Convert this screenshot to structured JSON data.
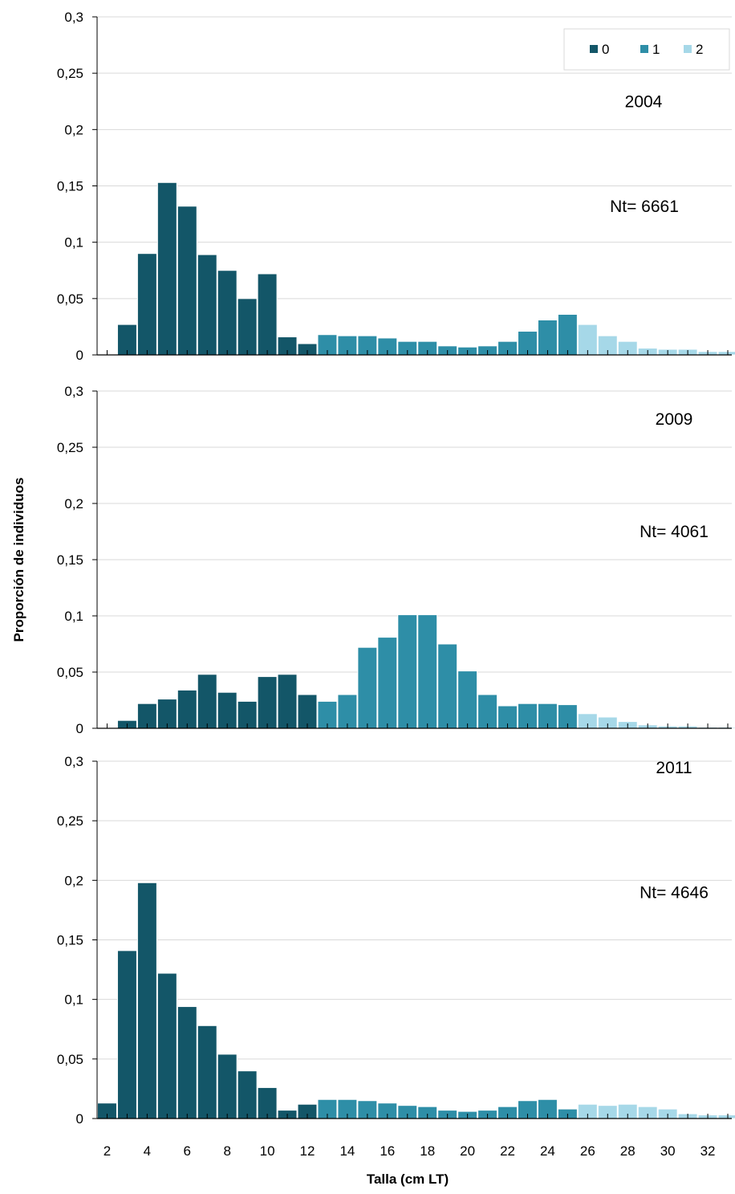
{
  "chart_data": {
    "type": "bar",
    "ylabel": "Proporción de individuos",
    "xlabel": "Talla (cm LT)",
    "x_ticks": [
      "2",
      "4",
      "6",
      "8",
      "10",
      "12",
      "14",
      "16",
      "18",
      "20",
      "22",
      "24",
      "26",
      "28",
      "30",
      "32"
    ],
    "y_ticks": [
      "0",
      "0,05",
      "0,1",
      "0,15",
      "0,2",
      "0,25",
      "0,3"
    ],
    "ylim": [
      0,
      0.3
    ],
    "legend": {
      "placement": "top-right",
      "entries": [
        {
          "label": "0",
          "color": "#135668"
        },
        {
          "label": "1",
          "color": "#2e8ea7"
        },
        {
          "label": "2",
          "color": "#a6d8e8"
        }
      ]
    },
    "panels": [
      {
        "year_label": "2004",
        "nt_label": "Nt= 6661",
        "x": [
          3,
          4,
          5,
          6,
          7,
          8,
          9,
          10,
          11,
          12,
          13,
          14,
          15,
          16,
          17,
          18,
          19,
          20,
          21,
          22,
          23,
          24,
          25,
          26,
          27,
          28,
          29,
          30,
          31,
          32,
          33
        ],
        "values": [
          0.027,
          0.09,
          0.153,
          0.132,
          0.089,
          0.075,
          0.05,
          0.072,
          0.016,
          0.01,
          0.018,
          0.017,
          0.017,
          0.015,
          0.012,
          0.012,
          0.008,
          0.007,
          0.008,
          0.012,
          0.021,
          0.031,
          0.036,
          0.027,
          0.017,
          0.012,
          0.006,
          0.005,
          0.005,
          0.003,
          0.003
        ],
        "groups": [
          0,
          0,
          0,
          0,
          0,
          0,
          0,
          0,
          0,
          0,
          1,
          1,
          1,
          1,
          1,
          1,
          1,
          1,
          1,
          1,
          1,
          1,
          1,
          2,
          2,
          2,
          2,
          2,
          2,
          2,
          2
        ]
      },
      {
        "year_label": "2009",
        "nt_label": "Nt= 4061",
        "x": [
          3,
          4,
          5,
          6,
          7,
          8,
          9,
          10,
          11,
          12,
          13,
          14,
          15,
          16,
          17,
          18,
          19,
          20,
          21,
          22,
          23,
          24,
          25,
          26,
          27,
          28,
          29,
          30,
          31,
          32,
          33
        ],
        "values": [
          0.007,
          0.022,
          0.026,
          0.034,
          0.048,
          0.032,
          0.024,
          0.046,
          0.048,
          0.03,
          0.024,
          0.03,
          0.072,
          0.081,
          0.101,
          0.101,
          0.075,
          0.051,
          0.03,
          0.02,
          0.022,
          0.022,
          0.021,
          0.013,
          0.01,
          0.006,
          0.003,
          0.002,
          0.002,
          0.001,
          0.001
        ],
        "groups": [
          0,
          0,
          0,
          0,
          0,
          0,
          0,
          0,
          0,
          0,
          1,
          1,
          1,
          1,
          1,
          1,
          1,
          1,
          1,
          1,
          1,
          1,
          1,
          2,
          2,
          2,
          2,
          2,
          2,
          2,
          2
        ]
      },
      {
        "year_label": "2011",
        "nt_label": "Nt= 4646",
        "x": [
          2,
          3,
          4,
          5,
          6,
          7,
          8,
          9,
          10,
          11,
          12,
          13,
          14,
          15,
          16,
          17,
          18,
          19,
          20,
          21,
          22,
          23,
          24,
          25,
          26,
          27,
          28,
          29,
          30,
          31,
          32,
          33
        ],
        "values": [
          0.013,
          0.141,
          0.198,
          0.122,
          0.094,
          0.078,
          0.054,
          0.04,
          0.026,
          0.007,
          0.012,
          0.016,
          0.016,
          0.015,
          0.013,
          0.011,
          0.01,
          0.007,
          0.006,
          0.007,
          0.01,
          0.015,
          0.016,
          0.008,
          0.012,
          0.011,
          0.012,
          0.01,
          0.008,
          0.004,
          0.003,
          0.003
        ],
        "groups": [
          0,
          0,
          0,
          0,
          0,
          0,
          0,
          0,
          0,
          0,
          0,
          1,
          1,
          1,
          1,
          1,
          1,
          1,
          1,
          1,
          1,
          1,
          1,
          1,
          2,
          2,
          2,
          2,
          2,
          2,
          2,
          2
        ]
      }
    ],
    "gridlines": true
  }
}
